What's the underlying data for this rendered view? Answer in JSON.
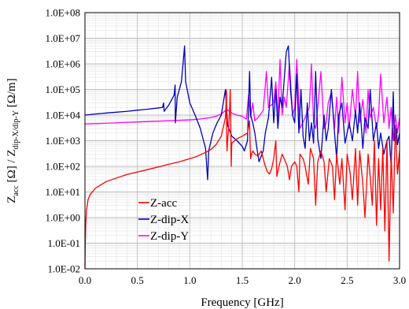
{
  "chart_data": {
    "type": "line",
    "ylabel_main": "Z",
    "ylabel_sub1": "acc",
    "ylabel_mid": " [Ω] / Z",
    "ylabel_sub2": "dip-X/dip-Y",
    "ylabel_tail": " [Ω/m]",
    "xlabel": "Frequency [GHz]",
    "x_scale": "linear",
    "y_scale": "log",
    "xlim": [
      0,
      3
    ],
    "ylim": [
      0.01,
      100000000
    ],
    "x_ticks": [
      "0.0",
      "0.5",
      "1.0",
      "1.5",
      "2.0",
      "2.5",
      "3.0"
    ],
    "y_ticks": [
      "1.0E-02",
      "1.0E-01",
      "1.0E+00",
      "1.0E+01",
      "1.0E+02",
      "1.0E+03",
      "1.0E+04",
      "1.0E+05",
      "1.0E+06",
      "1.0E+07",
      "1.0E+08"
    ],
    "grid": true,
    "legend_position": "bottom-left",
    "series": [
      {
        "name": "Z-acc",
        "color": "#ff0000",
        "points": [
          [
            0.0,
            0.01
          ],
          [
            0.003,
            0.1
          ],
          [
            0.008,
            0.6
          ],
          [
            0.015,
            2
          ],
          [
            0.03,
            5
          ],
          [
            0.05,
            8
          ],
          [
            0.1,
            14
          ],
          [
            0.2,
            25
          ],
          [
            0.3,
            35
          ],
          [
            0.4,
            48
          ],
          [
            0.5,
            60
          ],
          [
            0.6,
            75
          ],
          [
            0.7,
            95
          ],
          [
            0.8,
            120
          ],
          [
            0.9,
            150
          ],
          [
            1.0,
            200
          ],
          [
            1.05,
            230
          ],
          [
            1.1,
            280
          ],
          [
            1.15,
            350
          ],
          [
            1.2,
            450
          ],
          [
            1.25,
            700
          ],
          [
            1.3,
            1500
          ],
          [
            1.34,
            8000
          ],
          [
            1.35,
            90000
          ],
          [
            1.352,
            1000
          ],
          [
            1.355,
            400
          ],
          [
            1.36,
            1000
          ],
          [
            1.37,
            3000
          ],
          [
            1.38,
            20000
          ],
          [
            1.385,
            100000
          ],
          [
            1.39,
            8000
          ],
          [
            1.395,
            100
          ],
          [
            1.4,
            800
          ],
          [
            1.45,
            1200
          ],
          [
            1.5,
            1500
          ],
          [
            1.55,
            2000
          ],
          [
            1.57,
            6000
          ],
          [
            1.575,
            700
          ],
          [
            1.58,
            200
          ],
          [
            1.59,
            300
          ],
          [
            1.6,
            400
          ],
          [
            1.62,
            300
          ],
          [
            1.65,
            250
          ],
          [
            1.68,
            400
          ],
          [
            1.7,
            200
          ],
          [
            1.72,
            100
          ],
          [
            1.74,
            60
          ],
          [
            1.76,
            50
          ],
          [
            1.78,
            80
          ],
          [
            1.8,
            200
          ],
          [
            1.82,
            1000
          ],
          [
            1.83,
            40
          ],
          [
            1.85,
            100
          ],
          [
            1.88,
            300
          ],
          [
            1.9,
            200
          ],
          [
            1.93,
            100
          ],
          [
            1.95,
            30
          ],
          [
            1.97,
            100
          ],
          [
            2.0,
            150
          ],
          [
            2.02,
            100
          ],
          [
            2.04,
            10
          ],
          [
            2.05,
            300
          ],
          [
            2.08,
            200
          ],
          [
            2.1,
            100
          ],
          [
            2.13,
            20
          ],
          [
            2.15,
            500
          ],
          [
            2.18,
            200
          ],
          [
            2.2,
            3
          ],
          [
            2.22,
            150
          ],
          [
            2.25,
            400
          ],
          [
            2.28,
            150
          ],
          [
            2.3,
            10
          ],
          [
            2.33,
            200
          ],
          [
            2.36,
            100
          ],
          [
            2.38,
            5
          ],
          [
            2.4,
            300
          ],
          [
            2.43,
            20
          ],
          [
            2.45,
            200
          ],
          [
            2.48,
            2
          ],
          [
            2.5,
            300
          ],
          [
            2.53,
            50
          ],
          [
            2.55,
            5
          ],
          [
            2.58,
            500
          ],
          [
            2.6,
            3
          ],
          [
            2.62,
            400
          ],
          [
            2.65,
            20
          ],
          [
            2.67,
            1
          ],
          [
            2.7,
            300
          ],
          [
            2.72,
            40
          ],
          [
            2.74,
            3
          ],
          [
            2.76,
            1000
          ],
          [
            2.78,
            0.5
          ],
          [
            2.8,
            200
          ],
          [
            2.82,
            2
          ],
          [
            2.84,
            500
          ],
          [
            2.86,
            0.3
          ],
          [
            2.88,
            1000
          ],
          [
            2.9,
            0.02
          ],
          [
            2.92,
            300
          ],
          [
            2.94,
            1.5
          ],
          [
            2.96,
            4000
          ],
          [
            2.98,
            50
          ],
          [
            3.0,
            400
          ]
        ]
      },
      {
        "name": "Z-dip-X",
        "color": "#0000bb",
        "points": [
          [
            0.0,
            10000
          ],
          [
            0.1,
            11000
          ],
          [
            0.2,
            12000
          ],
          [
            0.3,
            13000
          ],
          [
            0.4,
            14000
          ],
          [
            0.5,
            15500
          ],
          [
            0.6,
            17000
          ],
          [
            0.7,
            19000
          ],
          [
            0.74,
            20000
          ],
          [
            0.75,
            30000
          ],
          [
            0.755,
            14000
          ],
          [
            0.8,
            25000
          ],
          [
            0.85,
            60000
          ],
          [
            0.86,
            150000
          ],
          [
            0.862,
            5000
          ],
          [
            0.88,
            50000
          ],
          [
            0.92,
            200000
          ],
          [
            0.95,
            5000000
          ],
          [
            0.96,
            200000
          ],
          [
            1.0,
            30000
          ],
          [
            1.05,
            10000
          ],
          [
            1.1,
            3000
          ],
          [
            1.15,
            500
          ],
          [
            1.17,
            30
          ],
          [
            1.18,
            400
          ],
          [
            1.22,
            2000
          ],
          [
            1.26,
            5000
          ],
          [
            1.3,
            10000
          ],
          [
            1.34,
            100000
          ],
          [
            1.36,
            4000
          ],
          [
            1.4,
            1500
          ],
          [
            1.45,
            1000
          ],
          [
            1.5,
            600
          ],
          [
            1.52,
            400
          ],
          [
            1.55,
            1000
          ],
          [
            1.57,
            500000
          ],
          [
            1.58,
            10000
          ],
          [
            1.6,
            5000
          ],
          [
            1.62,
            2000
          ],
          [
            1.64,
            500
          ],
          [
            1.66,
            150
          ],
          [
            1.7,
            400
          ],
          [
            1.72,
            2000
          ],
          [
            1.75,
            8000
          ],
          [
            1.78,
            300000
          ],
          [
            1.8,
            5000
          ],
          [
            1.82,
            100000
          ],
          [
            1.84,
            3000
          ],
          [
            1.86,
            50000
          ],
          [
            1.88,
            20000
          ],
          [
            1.92,
            3000000
          ],
          [
            1.94,
            5000000
          ],
          [
            1.96,
            100000
          ],
          [
            1.98,
            10000
          ],
          [
            2.0,
            5000
          ],
          [
            2.02,
            400000
          ],
          [
            2.04,
            2000
          ],
          [
            2.06,
            100000
          ],
          [
            2.08,
            1500
          ],
          [
            2.1,
            500
          ],
          [
            2.12,
            30000
          ],
          [
            2.14,
            1000
          ],
          [
            2.16,
            5000
          ],
          [
            2.18,
            800
          ],
          [
            2.2,
            500000
          ],
          [
            2.22,
            1200
          ],
          [
            2.25,
            200
          ],
          [
            2.28,
            10000
          ],
          [
            2.3,
            1000
          ],
          [
            2.32,
            3000
          ],
          [
            2.35,
            100000
          ],
          [
            2.38,
            2000
          ],
          [
            2.4,
            200
          ],
          [
            2.42,
            10000
          ],
          [
            2.45,
            30000
          ],
          [
            2.48,
            800
          ],
          [
            2.5,
            2000
          ],
          [
            2.52,
            5000
          ],
          [
            2.55,
            1000
          ],
          [
            2.58,
            15000
          ],
          [
            2.6,
            2000
          ],
          [
            2.62,
            30000
          ],
          [
            2.65,
            500
          ],
          [
            2.67,
            8000
          ],
          [
            2.7,
            3000
          ],
          [
            2.72,
            100000
          ],
          [
            2.75,
            1000
          ],
          [
            2.78,
            5000
          ],
          [
            2.8,
            500
          ],
          [
            2.82,
            2000
          ],
          [
            2.85,
            300
          ],
          [
            2.88,
            1000
          ],
          [
            2.9,
            1500
          ],
          [
            2.92,
            100
          ],
          [
            2.94,
            80000
          ],
          [
            2.95,
            1000
          ],
          [
            2.97,
            3000
          ],
          [
            2.98,
            700
          ],
          [
            3.0,
            2000
          ]
        ]
      },
      {
        "name": "Z-dip-Y",
        "color": "#ff00ff",
        "points": [
          [
            0.0,
            4500
          ],
          [
            0.2,
            4800
          ],
          [
            0.4,
            5200
          ],
          [
            0.6,
            5600
          ],
          [
            0.8,
            6000
          ],
          [
            1.0,
            6500
          ],
          [
            1.1,
            7000
          ],
          [
            1.2,
            8000
          ],
          [
            1.25,
            9000
          ],
          [
            1.3,
            11000
          ],
          [
            1.32,
            13000
          ],
          [
            1.34,
            15000
          ],
          [
            1.36,
            16000
          ],
          [
            1.4,
            12000
          ],
          [
            1.45,
            10000
          ],
          [
            1.5,
            9000
          ],
          [
            1.54,
            7000
          ],
          [
            1.56,
            60000
          ],
          [
            1.58,
            8000
          ],
          [
            1.6,
            30000
          ],
          [
            1.62,
            6000
          ],
          [
            1.65,
            8000
          ],
          [
            1.7,
            15000
          ],
          [
            1.73,
            500000
          ],
          [
            1.75,
            20000
          ],
          [
            1.8,
            30000
          ],
          [
            1.82,
            200000
          ],
          [
            1.84,
            8000
          ],
          [
            1.86,
            1500000
          ],
          [
            1.88,
            10000
          ],
          [
            1.9,
            50000
          ],
          [
            1.92,
            20000
          ],
          [
            1.95,
            1000000
          ],
          [
            1.98,
            10000
          ],
          [
            2.0,
            20000
          ],
          [
            2.02,
            1500000
          ],
          [
            2.05,
            3000
          ],
          [
            2.1,
            8000
          ],
          [
            2.14,
            20000
          ],
          [
            2.16,
            1000000
          ],
          [
            2.18,
            5000
          ],
          [
            2.2,
            3000
          ],
          [
            2.22,
            20000
          ],
          [
            2.25,
            500000
          ],
          [
            2.28,
            3000
          ],
          [
            2.3,
            5000
          ],
          [
            2.32,
            30000
          ],
          [
            2.35,
            80000
          ],
          [
            2.38,
            3000
          ],
          [
            2.4,
            50000
          ],
          [
            2.42,
            2000
          ],
          [
            2.45,
            300000
          ],
          [
            2.48,
            5000
          ],
          [
            2.5,
            30000
          ],
          [
            2.52,
            3000
          ],
          [
            2.55,
            100000
          ],
          [
            2.58,
            8000
          ],
          [
            2.6,
            500000
          ],
          [
            2.62,
            5000
          ],
          [
            2.65,
            40000
          ],
          [
            2.68,
            2000
          ],
          [
            2.7,
            100000
          ],
          [
            2.72,
            8000
          ],
          [
            2.75,
            20000
          ],
          [
            2.78,
            3000
          ],
          [
            2.8,
            10000
          ],
          [
            2.82,
            400000
          ],
          [
            2.85,
            5000
          ],
          [
            2.88,
            50000
          ],
          [
            2.9,
            3000
          ],
          [
            2.92,
            20000
          ],
          [
            2.94,
            1000
          ],
          [
            2.96,
            10000
          ],
          [
            2.98,
            2000
          ],
          [
            3.0,
            8000
          ]
        ]
      }
    ]
  }
}
